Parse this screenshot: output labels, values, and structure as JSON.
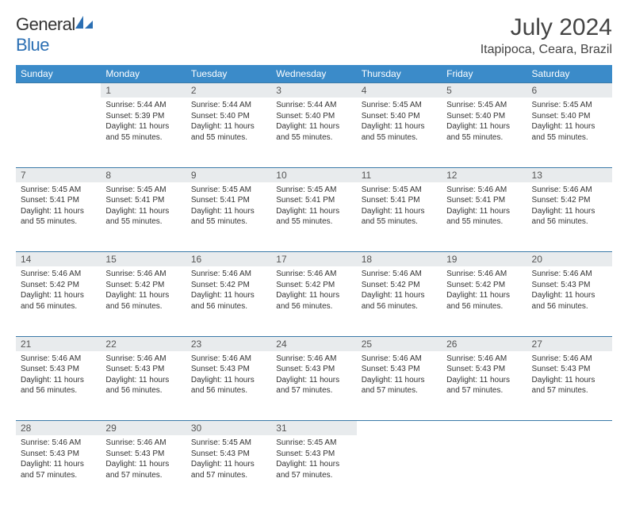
{
  "logo": {
    "text1": "General",
    "text2": "Blue",
    "icon_color": "#2b6fb3"
  },
  "header": {
    "title": "July 2024",
    "location": "Itapipoca, Ceara, Brazil"
  },
  "colors": {
    "header_bg": "#3b8bc9",
    "daynum_bg": "#e8ebed",
    "rule": "#3b7aa8"
  },
  "day_headers": [
    "Sunday",
    "Monday",
    "Tuesday",
    "Wednesday",
    "Thursday",
    "Friday",
    "Saturday"
  ],
  "weeks": [
    {
      "days": [
        {
          "num": "",
          "sunrise": "",
          "sunset": "",
          "daylight": ""
        },
        {
          "num": "1",
          "sunrise": "Sunrise: 5:44 AM",
          "sunset": "Sunset: 5:39 PM",
          "daylight": "Daylight: 11 hours and 55 minutes."
        },
        {
          "num": "2",
          "sunrise": "Sunrise: 5:44 AM",
          "sunset": "Sunset: 5:40 PM",
          "daylight": "Daylight: 11 hours and 55 minutes."
        },
        {
          "num": "3",
          "sunrise": "Sunrise: 5:44 AM",
          "sunset": "Sunset: 5:40 PM",
          "daylight": "Daylight: 11 hours and 55 minutes."
        },
        {
          "num": "4",
          "sunrise": "Sunrise: 5:45 AM",
          "sunset": "Sunset: 5:40 PM",
          "daylight": "Daylight: 11 hours and 55 minutes."
        },
        {
          "num": "5",
          "sunrise": "Sunrise: 5:45 AM",
          "sunset": "Sunset: 5:40 PM",
          "daylight": "Daylight: 11 hours and 55 minutes."
        },
        {
          "num": "6",
          "sunrise": "Sunrise: 5:45 AM",
          "sunset": "Sunset: 5:40 PM",
          "daylight": "Daylight: 11 hours and 55 minutes."
        }
      ]
    },
    {
      "days": [
        {
          "num": "7",
          "sunrise": "Sunrise: 5:45 AM",
          "sunset": "Sunset: 5:41 PM",
          "daylight": "Daylight: 11 hours and 55 minutes."
        },
        {
          "num": "8",
          "sunrise": "Sunrise: 5:45 AM",
          "sunset": "Sunset: 5:41 PM",
          "daylight": "Daylight: 11 hours and 55 minutes."
        },
        {
          "num": "9",
          "sunrise": "Sunrise: 5:45 AM",
          "sunset": "Sunset: 5:41 PM",
          "daylight": "Daylight: 11 hours and 55 minutes."
        },
        {
          "num": "10",
          "sunrise": "Sunrise: 5:45 AM",
          "sunset": "Sunset: 5:41 PM",
          "daylight": "Daylight: 11 hours and 55 minutes."
        },
        {
          "num": "11",
          "sunrise": "Sunrise: 5:45 AM",
          "sunset": "Sunset: 5:41 PM",
          "daylight": "Daylight: 11 hours and 55 minutes."
        },
        {
          "num": "12",
          "sunrise": "Sunrise: 5:46 AM",
          "sunset": "Sunset: 5:41 PM",
          "daylight": "Daylight: 11 hours and 55 minutes."
        },
        {
          "num": "13",
          "sunrise": "Sunrise: 5:46 AM",
          "sunset": "Sunset: 5:42 PM",
          "daylight": "Daylight: 11 hours and 56 minutes."
        }
      ]
    },
    {
      "days": [
        {
          "num": "14",
          "sunrise": "Sunrise: 5:46 AM",
          "sunset": "Sunset: 5:42 PM",
          "daylight": "Daylight: 11 hours and 56 minutes."
        },
        {
          "num": "15",
          "sunrise": "Sunrise: 5:46 AM",
          "sunset": "Sunset: 5:42 PM",
          "daylight": "Daylight: 11 hours and 56 minutes."
        },
        {
          "num": "16",
          "sunrise": "Sunrise: 5:46 AM",
          "sunset": "Sunset: 5:42 PM",
          "daylight": "Daylight: 11 hours and 56 minutes."
        },
        {
          "num": "17",
          "sunrise": "Sunrise: 5:46 AM",
          "sunset": "Sunset: 5:42 PM",
          "daylight": "Daylight: 11 hours and 56 minutes."
        },
        {
          "num": "18",
          "sunrise": "Sunrise: 5:46 AM",
          "sunset": "Sunset: 5:42 PM",
          "daylight": "Daylight: 11 hours and 56 minutes."
        },
        {
          "num": "19",
          "sunrise": "Sunrise: 5:46 AM",
          "sunset": "Sunset: 5:42 PM",
          "daylight": "Daylight: 11 hours and 56 minutes."
        },
        {
          "num": "20",
          "sunrise": "Sunrise: 5:46 AM",
          "sunset": "Sunset: 5:43 PM",
          "daylight": "Daylight: 11 hours and 56 minutes."
        }
      ]
    },
    {
      "days": [
        {
          "num": "21",
          "sunrise": "Sunrise: 5:46 AM",
          "sunset": "Sunset: 5:43 PM",
          "daylight": "Daylight: 11 hours and 56 minutes."
        },
        {
          "num": "22",
          "sunrise": "Sunrise: 5:46 AM",
          "sunset": "Sunset: 5:43 PM",
          "daylight": "Daylight: 11 hours and 56 minutes."
        },
        {
          "num": "23",
          "sunrise": "Sunrise: 5:46 AM",
          "sunset": "Sunset: 5:43 PM",
          "daylight": "Daylight: 11 hours and 56 minutes."
        },
        {
          "num": "24",
          "sunrise": "Sunrise: 5:46 AM",
          "sunset": "Sunset: 5:43 PM",
          "daylight": "Daylight: 11 hours and 57 minutes."
        },
        {
          "num": "25",
          "sunrise": "Sunrise: 5:46 AM",
          "sunset": "Sunset: 5:43 PM",
          "daylight": "Daylight: 11 hours and 57 minutes."
        },
        {
          "num": "26",
          "sunrise": "Sunrise: 5:46 AM",
          "sunset": "Sunset: 5:43 PM",
          "daylight": "Daylight: 11 hours and 57 minutes."
        },
        {
          "num": "27",
          "sunrise": "Sunrise: 5:46 AM",
          "sunset": "Sunset: 5:43 PM",
          "daylight": "Daylight: 11 hours and 57 minutes."
        }
      ]
    },
    {
      "days": [
        {
          "num": "28",
          "sunrise": "Sunrise: 5:46 AM",
          "sunset": "Sunset: 5:43 PM",
          "daylight": "Daylight: 11 hours and 57 minutes."
        },
        {
          "num": "29",
          "sunrise": "Sunrise: 5:46 AM",
          "sunset": "Sunset: 5:43 PM",
          "daylight": "Daylight: 11 hours and 57 minutes."
        },
        {
          "num": "30",
          "sunrise": "Sunrise: 5:45 AM",
          "sunset": "Sunset: 5:43 PM",
          "daylight": "Daylight: 11 hours and 57 minutes."
        },
        {
          "num": "31",
          "sunrise": "Sunrise: 5:45 AM",
          "sunset": "Sunset: 5:43 PM",
          "daylight": "Daylight: 11 hours and 57 minutes."
        },
        {
          "num": "",
          "sunrise": "",
          "sunset": "",
          "daylight": ""
        },
        {
          "num": "",
          "sunrise": "",
          "sunset": "",
          "daylight": ""
        },
        {
          "num": "",
          "sunrise": "",
          "sunset": "",
          "daylight": ""
        }
      ]
    }
  ]
}
